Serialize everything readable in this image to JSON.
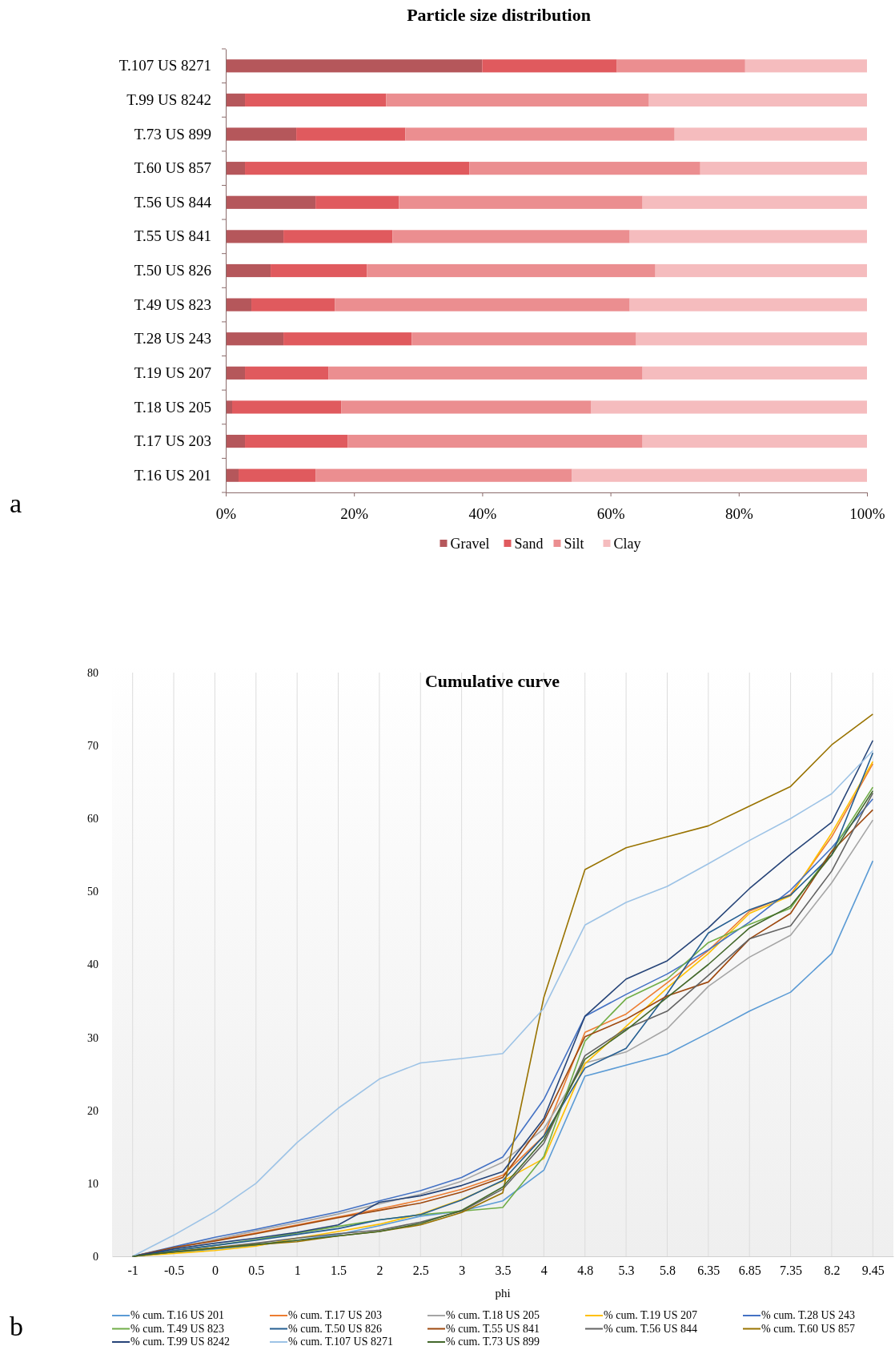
{
  "chart_data": [
    {
      "type": "bar",
      "orientation": "horizontal",
      "stacked": true,
      "title": "Particle size distribution",
      "categories": [
        "T.107 US 8271",
        "T.99 US 8242",
        "T.73 US 899",
        "T.60 US 857",
        "T.56 US 844",
        "T.55 US 841",
        "T.50 US 826",
        "T.49 US 823",
        "T.28 US 243",
        "T.19 US 207",
        "T.18 US 205",
        "T.17 US 203",
        "T.16 US 201"
      ],
      "series": [
        {
          "name": "Gravel",
          "color": "#b5575b",
          "values": [
            40,
            3,
            11,
            3,
            14,
            9,
            7,
            4,
            9,
            3,
            1,
            3,
            2
          ]
        },
        {
          "name": "Sand",
          "color": "#e05a5e",
          "values": [
            21,
            22,
            17,
            35,
            13,
            17,
            15,
            13,
            20,
            13,
            17,
            16,
            12
          ]
        },
        {
          "name": "Silt",
          "color": "#eb8e90",
          "values": [
            20,
            41,
            42,
            36,
            38,
            37,
            45,
            46,
            35,
            49,
            39,
            46,
            40
          ]
        },
        {
          "name": "Clay",
          "color": "#f5bcbe",
          "values": [
            19,
            34,
            30,
            26,
            35,
            37,
            33,
            37,
            36,
            35,
            43,
            35,
            46
          ]
        }
      ],
      "xlim": [
        0,
        100
      ],
      "xticks": [
        {
          "value": 0,
          "label": "0%"
        },
        {
          "value": 20,
          "label": "20%"
        },
        {
          "value": 40,
          "label": "40%"
        },
        {
          "value": 60,
          "label": "60%"
        },
        {
          "value": 80,
          "label": "80%"
        },
        {
          "value": 100,
          "label": "100%"
        }
      ],
      "legend": "bottom",
      "annotations": [
        "a"
      ]
    },
    {
      "type": "line",
      "title": "Cumulative curve",
      "xlabel": "phi",
      "categories": [
        "-1",
        "-0.5",
        "0",
        "0.5",
        "1",
        "1.5",
        "2",
        "2.5",
        "3",
        "3.5",
        "4",
        "4.8",
        "5.3",
        "5.8",
        "6.35",
        "6.85",
        "7.35",
        "8.2",
        "9.45"
      ],
      "series": [
        {
          "name": "% cum. T.16 US 201",
          "color": "#5b9bd5",
          "values": [
            0,
            0.5,
            1,
            1.5,
            2.2,
            3,
            4.2,
            5.5,
            6.2,
            7.6,
            11.8,
            24.7,
            26.2,
            27.7,
            30.6,
            33.6,
            36.2,
            41.5,
            54.2
          ]
        },
        {
          "name": "% cum. T.17 US 203",
          "color": "#ed7d31",
          "values": [
            0,
            1.2,
            2.2,
            3.2,
            4.3,
            5.4,
            6.5,
            7.7,
            9.2,
            11.1,
            16.5,
            30.7,
            33.2,
            37.5,
            41.9,
            47.3,
            49.6,
            57.5,
            67.5
          ]
        },
        {
          "name": "% cum. T.18 US 205",
          "color": "#a5a5a5",
          "values": [
            0,
            1.1,
            2.3,
            3.5,
            4.6,
            5.8,
            7.2,
            8.5,
            10.3,
            12.9,
            17.5,
            26.5,
            28,
            31.2,
            37,
            41,
            44,
            51.2,
            59.8
          ]
        },
        {
          "name": "% cum. T.19 US 207",
          "color": "#ffc000",
          "values": [
            0,
            0.4,
            0.8,
            1.4,
            2.5,
            3.4,
            4.4,
            5.8,
            7.8,
            10.3,
            13.4,
            26.4,
            31.5,
            36.8,
            41.5,
            47,
            49.4,
            58,
            67.8
          ]
        },
        {
          "name": "% cum. T.28 US 243",
          "color": "#4472c4",
          "values": [
            0,
            1.3,
            2.6,
            3.7,
            4.9,
            6.1,
            7.6,
            9,
            10.8,
            13.6,
            21.5,
            32.9,
            35.9,
            38.7,
            42,
            45.8,
            50.2,
            56,
            62.7
          ]
        },
        {
          "name": "% cum. T.49 US 823",
          "color": "#70ad47",
          "values": [
            0,
            0.8,
            1.5,
            2.3,
            3.2,
            4.1,
            5,
            5.7,
            6.2,
            6.7,
            13.7,
            29.5,
            35.3,
            38,
            43,
            45.5,
            47.7,
            55.5,
            64.3
          ]
        },
        {
          "name": "% cum. T.50 US 826",
          "color": "#255e91",
          "values": [
            0,
            0.8,
            1.5,
            2.2,
            3,
            3.8,
            5,
            5.7,
            7.7,
            10.4,
            16.5,
            25.8,
            28.5,
            36,
            44.3,
            47.5,
            49.5,
            55,
            69
          ]
        },
        {
          "name": "% cum. T.55 US 841",
          "color": "#9e480e",
          "values": [
            0,
            1.2,
            2.1,
            3.1,
            4.2,
            5.3,
            6.3,
            7.3,
            8.8,
            10.8,
            18.5,
            30.1,
            32.5,
            35.7,
            37.6,
            43.5,
            47,
            55.5,
            61.2
          ]
        },
        {
          "name": "% cum. T.56 US 844",
          "color": "#636363",
          "values": [
            0,
            0.6,
            1.2,
            1.8,
            2.5,
            3.1,
            3.6,
            4.7,
            6.2,
            9.2,
            15.5,
            27.5,
            31.2,
            33.6,
            38.5,
            43.5,
            45.3,
            52.8,
            63.5
          ]
        },
        {
          "name": "% cum. T.60 US 857",
          "color": "#997300",
          "values": [
            0,
            0.6,
            1.2,
            1.6,
            2,
            2.8,
            3.4,
            4.3,
            6,
            8.7,
            35.5,
            53,
            56,
            57.5,
            59,
            61.7,
            64.4,
            70.1,
            74.3
          ]
        },
        {
          "name": "% cum. T.99 US 8242",
          "color": "#264478",
          "values": [
            0,
            1,
            1.8,
            2.5,
            3.3,
            4.3,
            7.4,
            8.3,
            9.7,
            11.6,
            18.9,
            32.9,
            38,
            40.5,
            45,
            50.4,
            55.1,
            59.5,
            70.7
          ]
        },
        {
          "name": "% cum. T.107 US 8271",
          "color": "#9dc3e6",
          "values": [
            0,
            2.9,
            6.1,
            10,
            15.6,
            20.3,
            24.3,
            26.5,
            27.1,
            27.8,
            34,
            45.4,
            48.5,
            50.7,
            53.8,
            57,
            60,
            63.4,
            69.3
          ]
        },
        {
          "name": "% cum. T.73 US 899",
          "color": "#43682b",
          "values": [
            0,
            0.6,
            1.1,
            1.6,
            2.2,
            2.8,
            3.4,
            4.5,
            6.3,
            9.5,
            16,
            27,
            31,
            35.5,
            40,
            45,
            48,
            55,
            63.8
          ]
        }
      ],
      "ylim": [
        0,
        80
      ],
      "yticks": [
        0,
        10,
        20,
        30,
        40,
        50,
        60,
        70,
        80
      ],
      "grid": "x",
      "legend": "bottom",
      "annotations": [
        "b"
      ]
    }
  ]
}
